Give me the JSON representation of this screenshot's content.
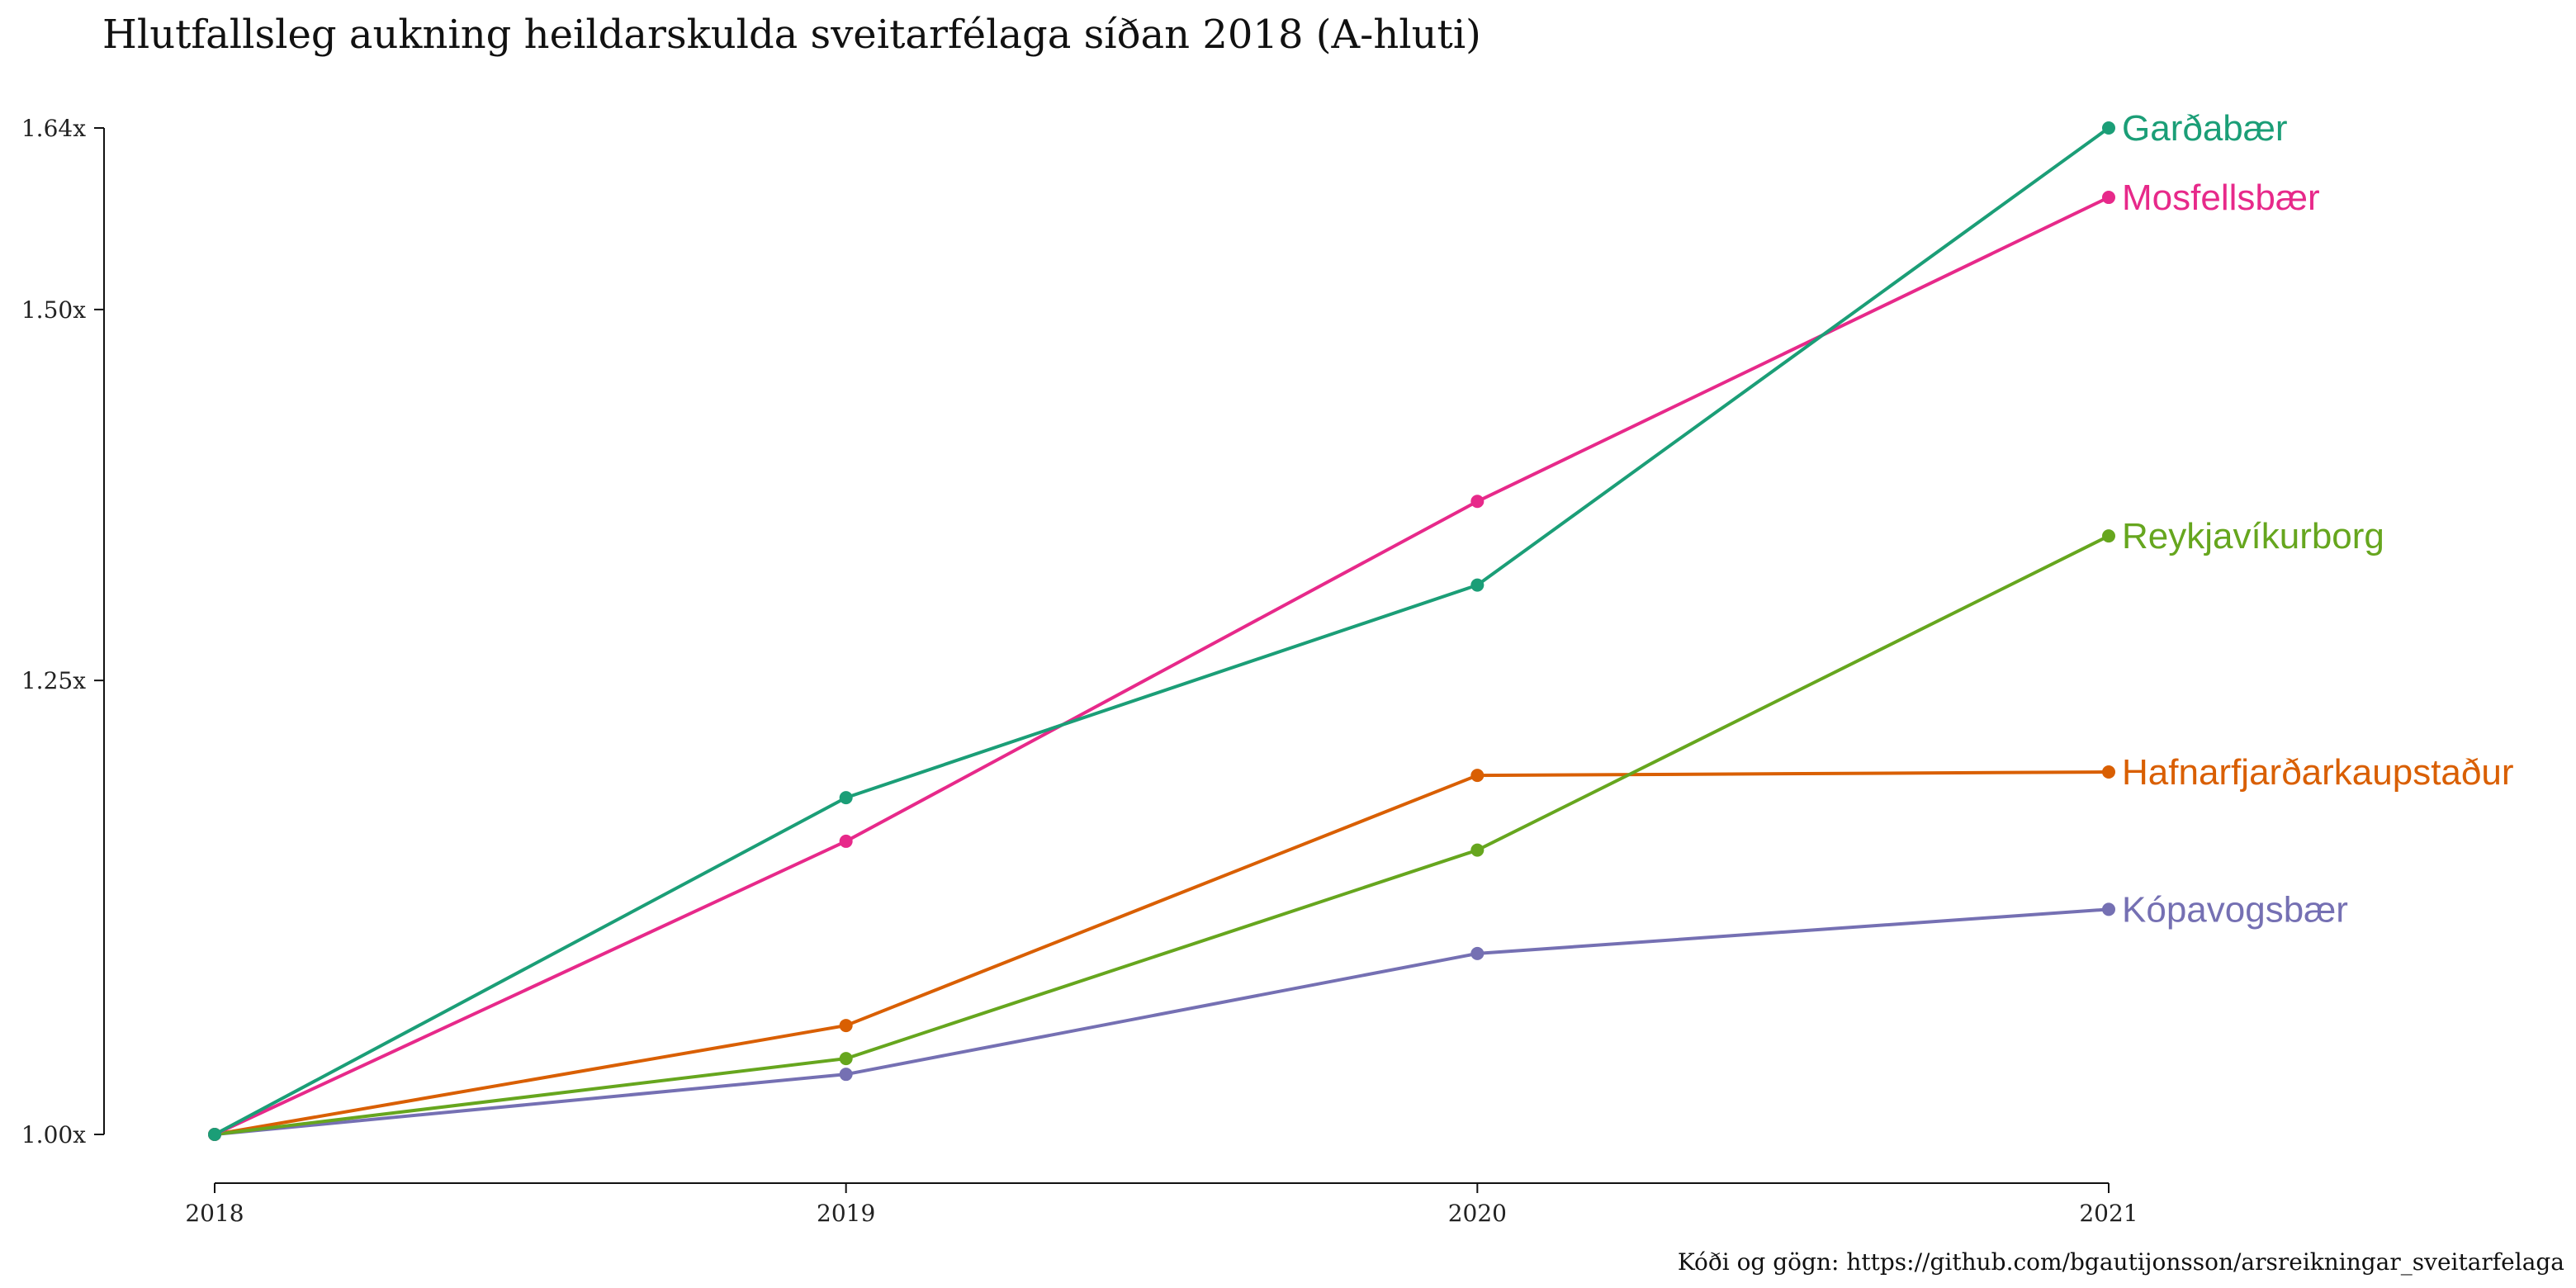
{
  "chart_data": {
    "type": "line",
    "title": "Hlutfallsleg aukning heildarskulda sveitarfélaga síðan 2018 (A-hluti)",
    "caption": "Kóði og gögn: https://github.com/bgautijonsson/arsreikningar_sveitarfelaga",
    "xlabel": "",
    "ylabel": "",
    "x": [
      2018,
      2019,
      2020,
      2021
    ],
    "x_tick_labels": [
      "2018",
      "2019",
      "2020",
      "2021"
    ],
    "y_ticks": [
      1.0,
      1.25,
      1.5,
      1.64
    ],
    "y_tick_labels": [
      "1.00x",
      "1.25x",
      "1.50x",
      "1.64x"
    ],
    "y_scale": "log",
    "ylim": [
      1.0,
      1.64
    ],
    "grid": false,
    "legend": "direct labels at line ends",
    "series": [
      {
        "name": "Garðabær",
        "color": "#1B9E77",
        "values": [
          1.0,
          1.18,
          1.31,
          1.64
        ]
      },
      {
        "name": "Mosfellsbær",
        "color": "#E7298A",
        "values": [
          1.0,
          1.155,
          1.365,
          1.585
        ]
      },
      {
        "name": "Reykjavíkurborg",
        "color": "#66A61E",
        "values": [
          1.0,
          1.038,
          1.15,
          1.342
        ]
      },
      {
        "name": "Hafnarfjarðarkaupstaður",
        "color": "#D95F02",
        "values": [
          1.0,
          1.055,
          1.193,
          1.195
        ]
      },
      {
        "name": "Kópavogsbær",
        "color": "#7570B3",
        "values": [
          1.0,
          1.03,
          1.093,
          1.117
        ]
      }
    ]
  }
}
